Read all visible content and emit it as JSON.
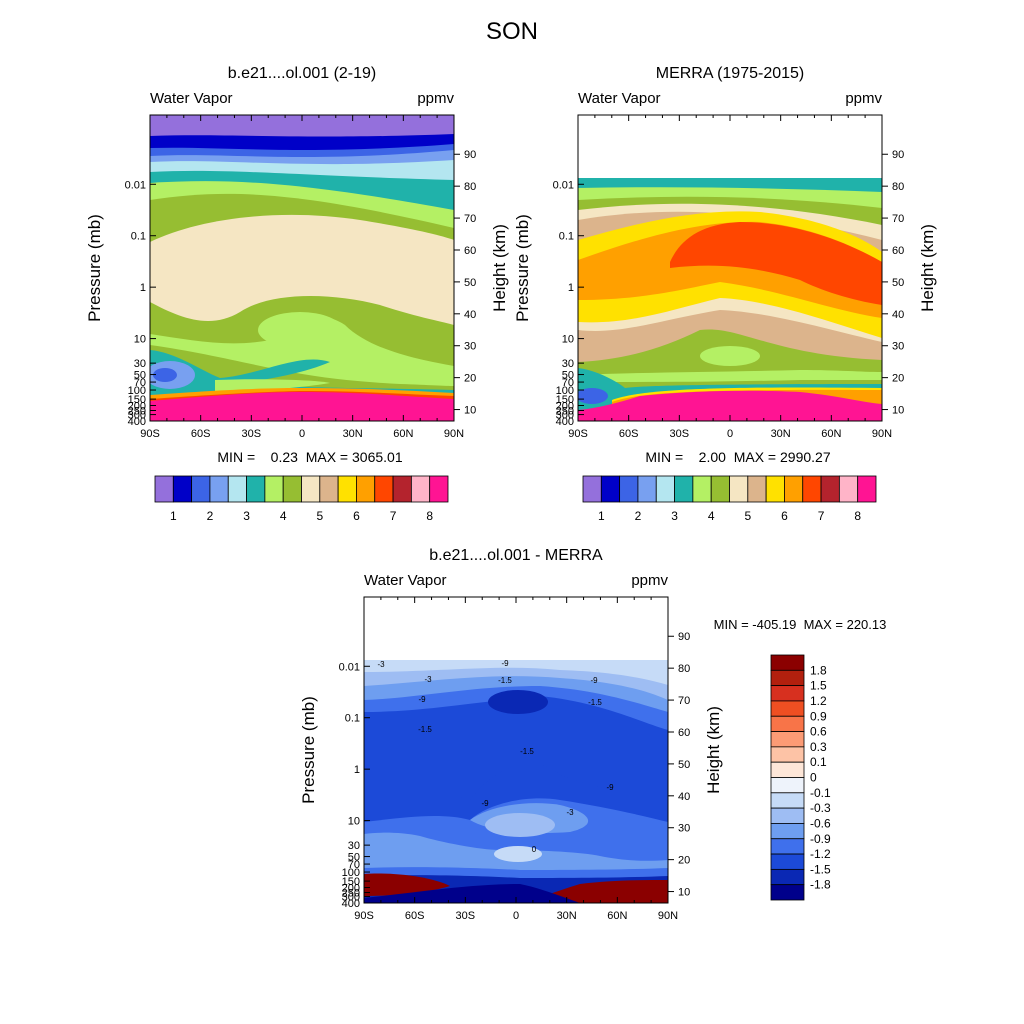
{
  "main_title": "SON",
  "chart_data": [
    {
      "type": "contour",
      "title": "b.e21....ol.001 (2-19)",
      "left_label": "Water Vapor",
      "right_label": "ppmv",
      "xlabel": "",
      "ylabel": "Pressure (mb)",
      "y2label": "Height (km)",
      "x_ticks": [
        "90S",
        "60S",
        "30S",
        "0",
        "30N",
        "60N",
        "90N"
      ],
      "x_values": [
        -90,
        -60,
        -30,
        0,
        30,
        60,
        90
      ],
      "pressure_ticks": [
        "0.01",
        "0.1",
        "1",
        "10",
        "30",
        "50",
        "70",
        "100",
        "150",
        "200",
        "250",
        "300",
        "400"
      ],
      "pressure_values": [
        0.01,
        0.1,
        1,
        10,
        30,
        50,
        70,
        100,
        150,
        200,
        250,
        300,
        400
      ],
      "pressure_range": [
        0.00045,
        400
      ],
      "height_ticks": [
        "10",
        "20",
        "30",
        "40",
        "50",
        "60",
        "70",
        "80",
        "90"
      ],
      "height_values": [
        10,
        20,
        30,
        40,
        50,
        60,
        70,
        80,
        90
      ],
      "stats": "MIN =    0.23  MAX = 3065.01",
      "colorbar_labels": [
        "1",
        "2",
        "3",
        "4",
        "5",
        "6",
        "7",
        "8"
      ],
      "colorbar_colors": [
        "#9470dc",
        "#0000c8",
        "#3c64e6",
        "#78a0f0",
        "#b4e6f0",
        "#20b2aa",
        "#b4f064",
        "#96be32",
        "#f5e6c3",
        "#dcb48c",
        "#ffe100",
        "#ffa000",
        "#ff4600",
        "#b4232d",
        "#ffb4c8",
        "#ff1493"
      ],
      "data_top": 0.00045
    },
    {
      "type": "contour",
      "title": "MERRA (1975-2015)",
      "left_label": "Water Vapor",
      "right_label": "ppmv",
      "xlabel": "",
      "ylabel": "Pressure (mb)",
      "y2label": "Height (km)",
      "x_ticks": [
        "90S",
        "60S",
        "30S",
        "0",
        "30N",
        "60N",
        "90N"
      ],
      "x_values": [
        -90,
        -60,
        -30,
        0,
        30,
        60,
        90
      ],
      "pressure_ticks": [
        "0.01",
        "0.1",
        "1",
        "10",
        "30",
        "50",
        "70",
        "100",
        "150",
        "200",
        "250",
        "300",
        "400"
      ],
      "pressure_values": [
        0.01,
        0.1,
        1,
        10,
        30,
        50,
        70,
        100,
        150,
        200,
        250,
        300,
        400
      ],
      "pressure_range": [
        0.00045,
        400
      ],
      "height_ticks": [
        "10",
        "20",
        "30",
        "40",
        "50",
        "60",
        "70",
        "80",
        "90"
      ],
      "height_values": [
        10,
        20,
        30,
        40,
        50,
        60,
        70,
        80,
        90
      ],
      "stats": "MIN =    2.00  MAX = 2990.27",
      "colorbar_labels": [
        "1",
        "2",
        "3",
        "4",
        "5",
        "6",
        "7",
        "8"
      ],
      "colorbar_colors": [
        "#9470dc",
        "#0000c8",
        "#3c64e6",
        "#78a0f0",
        "#b4e6f0",
        "#20b2aa",
        "#b4f064",
        "#96be32",
        "#f5e6c3",
        "#dcb48c",
        "#ffe100",
        "#ffa000",
        "#ff4600",
        "#b4232d",
        "#ffb4c8",
        "#ff1493"
      ],
      "data_top": 0.015
    },
    {
      "type": "contour",
      "title": "b.e21....ol.001 - MERRA",
      "left_label": "Water Vapor",
      "right_label": "ppmv",
      "xlabel": "",
      "ylabel": "Pressure (mb)",
      "y2label": "Height (km)",
      "x_ticks": [
        "90S",
        "60S",
        "30S",
        "0",
        "30N",
        "60N",
        "90N"
      ],
      "x_values": [
        -90,
        -60,
        -30,
        0,
        30,
        60,
        90
      ],
      "pressure_ticks": [
        "0.01",
        "0.1",
        "1",
        "10",
        "30",
        "50",
        "70",
        "100",
        "150",
        "200",
        "250",
        "300",
        "400"
      ],
      "pressure_values": [
        0.01,
        0.1,
        1,
        10,
        30,
        50,
        70,
        100,
        150,
        200,
        250,
        300,
        400
      ],
      "pressure_range": [
        0.00045,
        400
      ],
      "height_ticks": [
        "10",
        "20",
        "30",
        "40",
        "50",
        "60",
        "70",
        "80",
        "90"
      ],
      "height_values": [
        10,
        20,
        30,
        40,
        50,
        60,
        70,
        80,
        90
      ],
      "stats": "MIN = -405.19  MAX = 220.13",
      "colorbar_labels": [
        "1.8",
        "1.5",
        "1.2",
        "0.9",
        "0.6",
        "0.3",
        "0.1",
        "0",
        "-0.1",
        "-0.3",
        "-0.6",
        "-0.9",
        "-1.2",
        "-1.5",
        "-1.8"
      ],
      "colorbar_colors": [
        "#8b0000",
        "#b2200e",
        "#d7301f",
        "#ef4f22",
        "#f87448",
        "#fc9b75",
        "#fdc3a6",
        "#fde6d8",
        "#eef3fb",
        "#c6dbf7",
        "#9ebdf3",
        "#6e9ef0",
        "#3f70ec",
        "#1c4ad8",
        "#0a28b4",
        "#00008b"
      ],
      "contour_labels": [
        "-9",
        "-3",
        "-9",
        "-1.5",
        "-9",
        "-1.5",
        "-1.5",
        "-1.5",
        "-9",
        "-9",
        "-3",
        "0",
        "-3"
      ],
      "data_top": 0.015
    }
  ]
}
